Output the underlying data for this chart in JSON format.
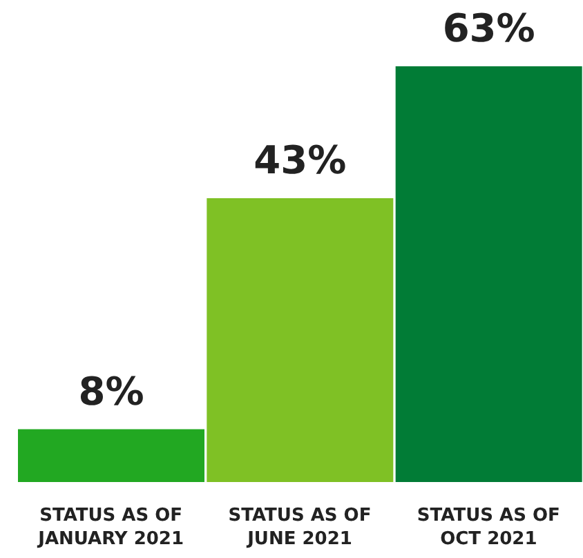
{
  "chart_data": {
    "type": "bar",
    "categories": [
      "STATUS AS OF JANUARY 2021",
      "STATUS AS OF JUNE 2021",
      "STATUS AS OF OCT 2021"
    ],
    "values": [
      8,
      43,
      63
    ],
    "colors": [
      "#22a822",
      "#7fc125",
      "#017c36"
    ],
    "value_labels": [
      "8%",
      "43%",
      "63%"
    ]
  }
}
